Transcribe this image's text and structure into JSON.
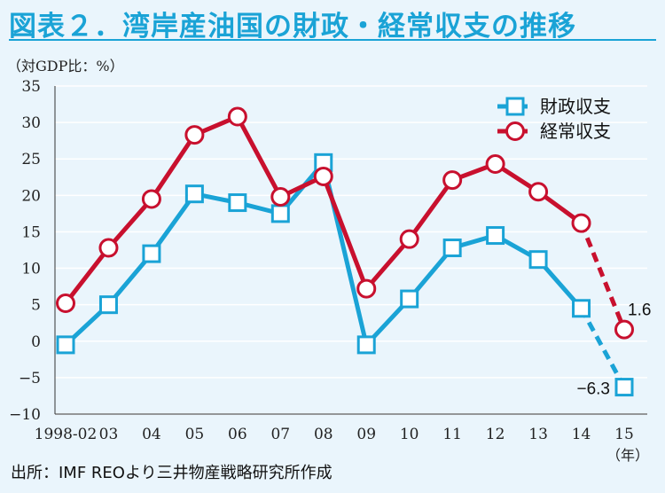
{
  "title": "図表２．湾岸産油国の財政・経常収支の推移",
  "unit_label": "（対GDP比：%）",
  "year_label": "（年）",
  "source": "出所：IMF REOより三井物産戦略研究所作成",
  "colors": {
    "fiscal": "#1aa3d6",
    "current": "#c8102e",
    "accent": "#1aa3d6",
    "grid": "#ffffff"
  },
  "chart_data": {
    "type": "line",
    "categories": [
      "1998-02",
      "03",
      "04",
      "05",
      "06",
      "07",
      "08",
      "09",
      "10",
      "11",
      "12",
      "13",
      "14",
      "15"
    ],
    "ylim": [
      -10,
      35
    ],
    "yticks": [
      "-10",
      "-5",
      "0",
      "5",
      "10",
      "15",
      "20",
      "25",
      "30",
      "35"
    ],
    "grid": true,
    "legend_position": "top-right",
    "dashed_last_segment": true,
    "series": [
      {
        "name": "財政収支",
        "marker": "square",
        "values": [
          -0.5,
          5.0,
          12.0,
          20.2,
          19.0,
          17.5,
          24.5,
          -0.5,
          5.8,
          12.8,
          14.5,
          11.2,
          4.5,
          -6.3
        ]
      },
      {
        "name": "経常収支",
        "marker": "circle",
        "values": [
          5.2,
          12.8,
          19.5,
          28.3,
          30.8,
          19.8,
          22.6,
          7.2,
          14.0,
          22.1,
          24.3,
          20.5,
          16.2,
          1.6
        ]
      }
    ],
    "annotations": [
      {
        "series": 1,
        "index": 13,
        "text": "1.6"
      },
      {
        "series": 0,
        "index": 13,
        "text": "−6.3"
      }
    ]
  }
}
